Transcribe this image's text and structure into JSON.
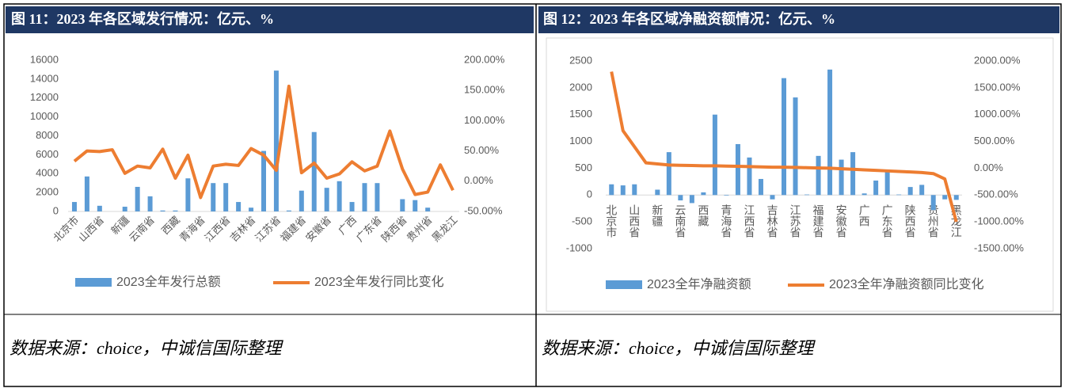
{
  "chart_data": [
    {
      "type": "bar_line",
      "title": "图 11：2023 年各区域发行情况：亿元、%",
      "categories": [
        "北京市",
        null,
        "山西省",
        null,
        "新疆",
        null,
        "云南省",
        null,
        "西藏",
        null,
        "青海省",
        null,
        "江西省",
        null,
        "吉林省",
        null,
        "江苏省",
        null,
        "福建省",
        null,
        "安徽省",
        null,
        "广西",
        null,
        "广东省",
        null,
        "陕西省",
        null,
        "贵州省",
        null,
        "黑龙江"
      ],
      "series": [
        {
          "name": "2023全年发行总额",
          "type": "bar",
          "color": "#5b9bd5",
          "values": [
            1000,
            3700,
            600,
            0,
            500,
            2600,
            1600,
            100,
            100,
            3500,
            0,
            3000,
            3000,
            1000,
            400,
            6400,
            14900,
            100,
            2200,
            8400,
            2500,
            3200,
            1000,
            3000,
            3000,
            0,
            1300,
            1200,
            400,
            0,
            0
          ]
        },
        {
          "name": "2023全年发行同比变化",
          "type": "line",
          "axis": "y2",
          "color": "#ed7d31",
          "values": [
            33,
            50,
            49,
            52,
            13,
            25,
            22,
            53,
            5,
            43,
            -27,
            25,
            28,
            26,
            54,
            43,
            18,
            157,
            14,
            30,
            5,
            12,
            32,
            17,
            25,
            83,
            20,
            -22,
            -18,
            27,
            -15
          ]
        }
      ],
      "ylim": [
        0,
        16000
      ],
      "yticks": [
        0,
        2000,
        4000,
        6000,
        8000,
        10000,
        12000,
        14000,
        16000
      ],
      "y2lim": [
        -50,
        200
      ],
      "y2ticks": [
        {
          "value": -50,
          "label": "-50.00%"
        },
        {
          "value": 0,
          "label": "0.00%"
        },
        {
          "value": 50,
          "label": "50.00%"
        },
        {
          "value": 100,
          "label": "100.00%"
        },
        {
          "value": 150,
          "label": "150.00%"
        },
        {
          "value": 200,
          "label": "200.00%"
        }
      ]
    },
    {
      "type": "bar_line",
      "title": "图 12：2023 年各区域净融资额情况：亿元、%",
      "categories": [
        "北京市",
        null,
        "山西省",
        null,
        "新疆",
        null,
        "云南省",
        null,
        "西藏",
        null,
        "青海省",
        null,
        "江西省",
        null,
        "吉林省",
        null,
        "江苏省",
        null,
        "福建省",
        null,
        "安徽省",
        null,
        "广西",
        null,
        "广东省",
        null,
        "陕西省",
        null,
        "贵州省",
        null,
        "黑龙江"
      ],
      "series": [
        {
          "name": "2023全年净融资额",
          "type": "bar",
          "color": "#5b9bd5",
          "values": [
            200,
            180,
            200,
            0,
            100,
            800,
            -100,
            -150,
            50,
            1500,
            -10,
            950,
            700,
            300,
            -80,
            2180,
            1820,
            10,
            730,
            2340,
            660,
            800,
            30,
            270,
            430,
            10,
            150,
            190,
            -280,
            -80,
            -90
          ]
        },
        {
          "name": "2023全年净融资额同比变化",
          "type": "line",
          "axis": "y2",
          "color": "#ed7d31",
          "values": [
            1800,
            700,
            400,
            100,
            80,
            60,
            55,
            50,
            45,
            45,
            40,
            35,
            30,
            25,
            20,
            20,
            15,
            10,
            5,
            0,
            -10,
            -20,
            -30,
            -40,
            -50,
            -60,
            -70,
            -80,
            -100,
            -200,
            -1000
          ]
        }
      ],
      "ylim": [
        -1000,
        2500
      ],
      "yticks": [
        -1000,
        -500,
        0,
        500,
        1000,
        1500,
        2000,
        2500
      ],
      "y2lim": [
        -1500,
        2000
      ],
      "y2ticks": [
        {
          "value": -1500,
          "label": "-1500.00%"
        },
        {
          "value": -1000,
          "label": "-1000.00%"
        },
        {
          "value": -500,
          "label": "-500.00%"
        },
        {
          "value": 0,
          "label": "0.00%"
        },
        {
          "value": 500,
          "label": "500.00%"
        },
        {
          "value": 1000,
          "label": "1000.00%"
        },
        {
          "value": 1500,
          "label": "1500.00%"
        },
        {
          "value": 2000,
          "label": "2000.00%"
        }
      ]
    }
  ],
  "sources": [
    "数据来源：choice，中诚信国际整理",
    "数据来源：choice，中诚信国际整理"
  ]
}
